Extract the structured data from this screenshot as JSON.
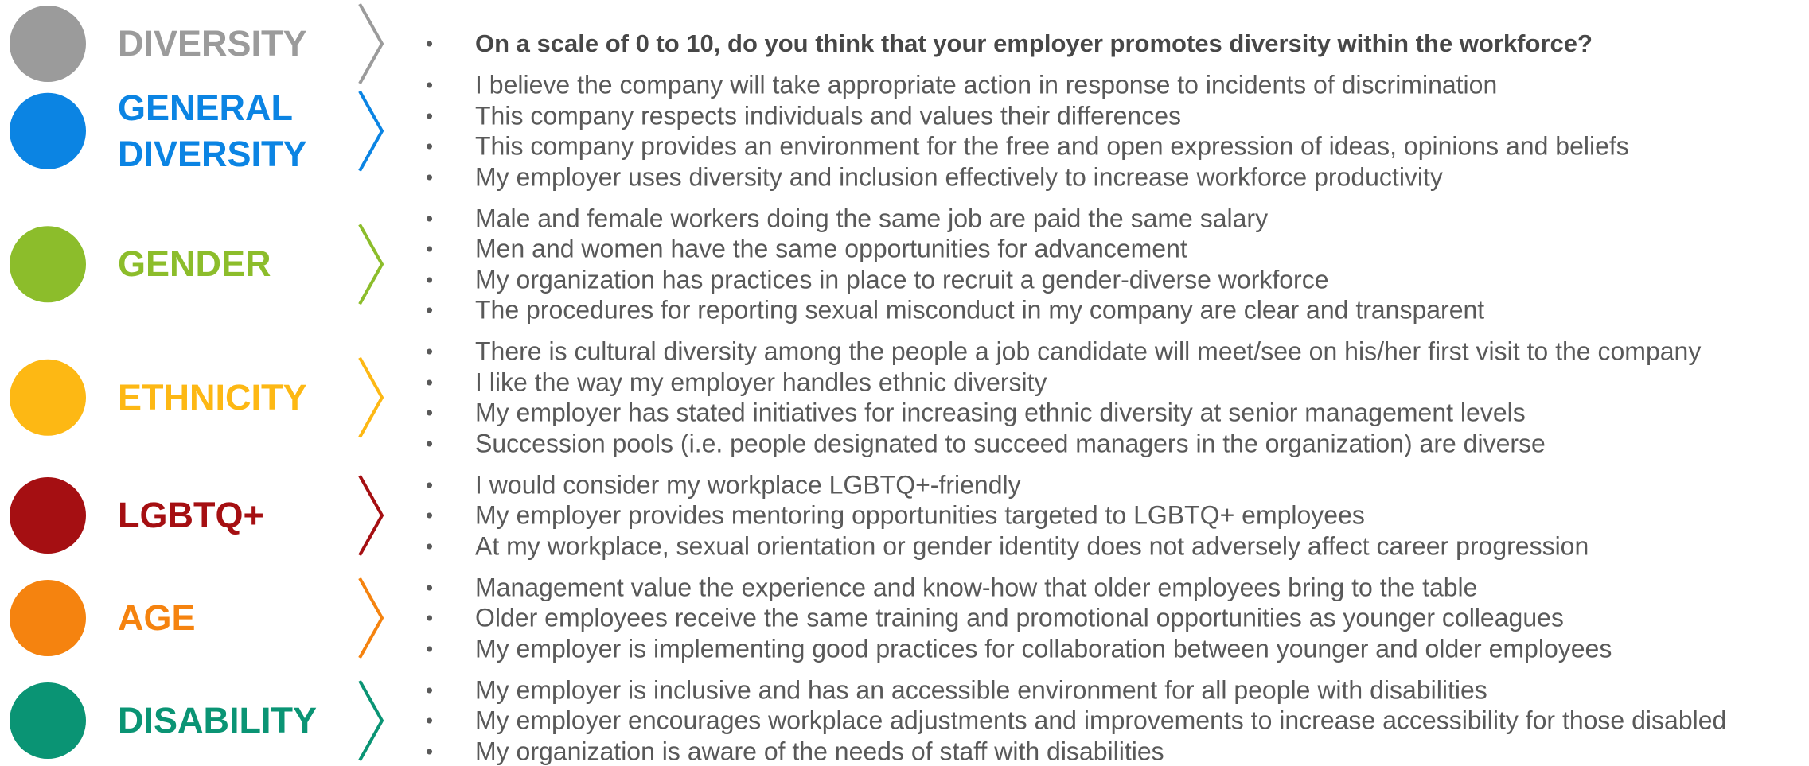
{
  "sections": [
    {
      "label": "DIVERSITY",
      "color": "#9b9b9b",
      "emphasis": true,
      "items": [
        "On a scale of 0 to 10, do you think that your employer promotes diversity within the workforce?"
      ]
    },
    {
      "label": "GENERAL DIVERSITY",
      "color": "#0b84e3",
      "items": [
        "I believe the company will take appropriate action in response to incidents of discrimination",
        "This company respects individuals and values their differences",
        "This company provides an environment for the free and open expression of ideas, opinions and beliefs",
        "My employer uses diversity and inclusion effectively to increase workforce productivity"
      ]
    },
    {
      "label": "GENDER",
      "color": "#8cbd2b",
      "items": [
        "Male and female workers doing the same job are paid the same salary",
        "Men and women have the same opportunities for advancement",
        "My organization has practices in place to recruit a gender-diverse workforce",
        "The procedures for reporting sexual misconduct in my company are clear and transparent"
      ]
    },
    {
      "label": "ETHNICITY",
      "color": "#fdb814",
      "items": [
        "There is cultural diversity among the people a job candidate will meet/see on his/her first visit to the company",
        "I like the way my employer handles ethnic diversity",
        "My employer has stated initiatives for increasing ethnic diversity at senior management levels",
        "Succession pools (i.e. people designated to succeed managers in the organization) are diverse"
      ]
    },
    {
      "label": "LGBTQ+",
      "color": "#a50f12",
      "items": [
        "I would consider my workplace LGBTQ+-friendly",
        "My employer provides mentoring opportunities targeted to LGBTQ+ employees",
        "At my workplace, sexual orientation or gender identity does not adversely affect career progression"
      ]
    },
    {
      "label": "AGE",
      "color": "#f5830f",
      "items": [
        "Management value the experience and know-how that older employees bring to the table",
        "Older employees receive the same training and promotional opportunities as younger colleagues",
        "My employer is implementing good practices for collaboration between younger and older employees"
      ]
    },
    {
      "label": "DISABILITY",
      "color": "#0a9474",
      "items": [
        "My employer is inclusive and has an accessible environment for all people with disabilities",
        "My employer encourages workplace adjustments and improvements to increase accessibility for those disabled",
        "My organization is aware of the needs of staff with disabilities"
      ]
    }
  ]
}
